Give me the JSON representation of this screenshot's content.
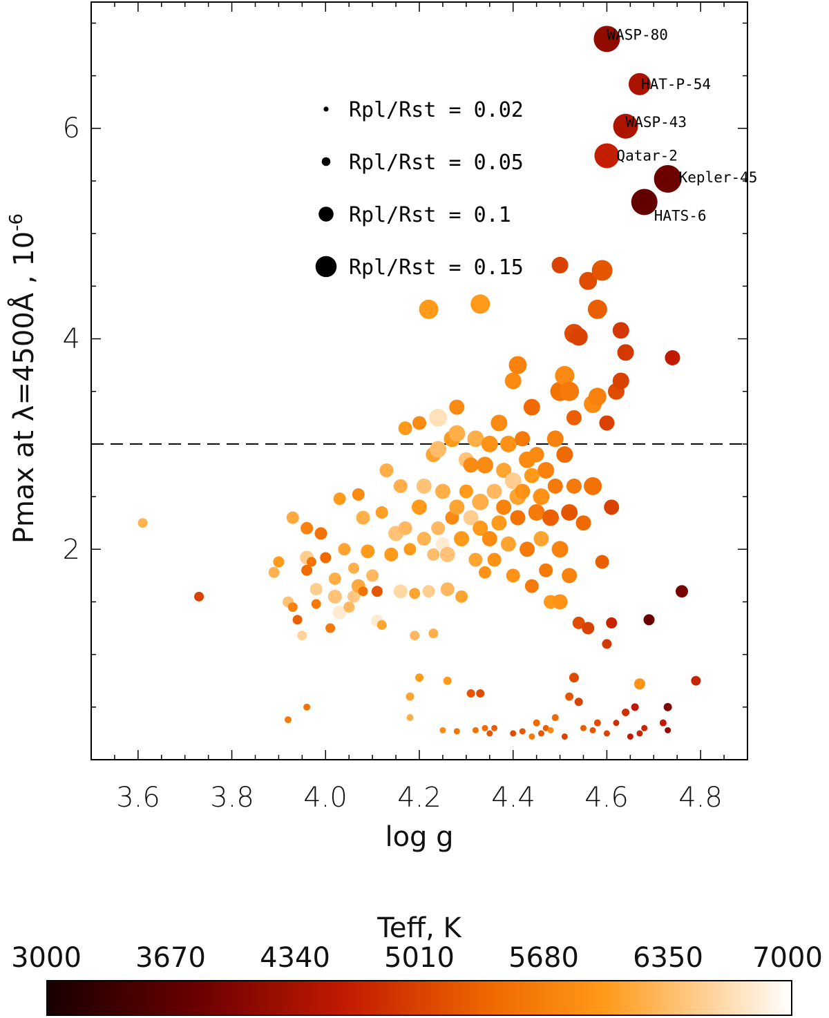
{
  "chart_data": {
    "type": "scatter",
    "xlabel": "log g",
    "ylabel_main": "Pmax at λ=4500Å , 10",
    "ylabel_exp": "-6",
    "xlim": [
      3.5,
      4.9
    ],
    "ylim": [
      0,
      7.2
    ],
    "x_ticks": [
      "3.6",
      "3.8",
      "4.0",
      "4.2",
      "4.4",
      "4.6",
      "4.8"
    ],
    "y_ticks": [
      "2",
      "4",
      "6"
    ],
    "threshold_line": 3.0,
    "size_legend": [
      {
        "label": "Rpl/Rst = 0.02",
        "ratio": 0.02
      },
      {
        "label": "Rpl/Rst = 0.05",
        "ratio": 0.05
      },
      {
        "label": "Rpl/Rst = 0.1",
        "ratio": 0.1
      },
      {
        "label": "Rpl/Rst = 0.15",
        "ratio": 0.15
      }
    ],
    "labeled_points": [
      {
        "name": "WASP-80",
        "logg": 4.6,
        "pmax": 6.85,
        "teff": 4150,
        "ratio": 0.17
      },
      {
        "name": "HAT-P-54",
        "logg": 4.67,
        "pmax": 6.42,
        "teff": 4390,
        "ratio": 0.14
      },
      {
        "name": "WASP-43",
        "logg": 4.64,
        "pmax": 6.02,
        "teff": 4400,
        "ratio": 0.16
      },
      {
        "name": "Qatar-2",
        "logg": 4.6,
        "pmax": 5.74,
        "teff": 4640,
        "ratio": 0.16
      },
      {
        "name": "Kepler-45",
        "logg": 4.73,
        "pmax": 5.52,
        "teff": 3820,
        "ratio": 0.18
      },
      {
        "name": "HATS-6",
        "logg": 4.68,
        "pmax": 5.3,
        "teff": 3720,
        "ratio": 0.17
      }
    ],
    "points": [
      [
        3.61,
        2.25,
        6250,
        0.05
      ],
      [
        3.73,
        1.55,
        5000,
        0.05
      ],
      [
        3.89,
        1.78,
        6250,
        0.06
      ],
      [
        3.9,
        1.88,
        6000,
        0.06
      ],
      [
        3.92,
        1.5,
        6400,
        0.06
      ],
      [
        3.93,
        2.3,
        6150,
        0.07
      ],
      [
        3.93,
        1.45,
        5700,
        0.05
      ],
      [
        3.94,
        1.33,
        5300,
        0.05
      ],
      [
        3.95,
        1.18,
        6550,
        0.05
      ],
      [
        3.96,
        2.2,
        5700,
        0.07
      ],
      [
        3.96,
        1.92,
        6500,
        0.08
      ],
      [
        3.96,
        1.8,
        5400,
        0.06
      ],
      [
        3.97,
        1.88,
        5500,
        0.05
      ],
      [
        3.98,
        1.62,
        6500,
        0.07
      ],
      [
        3.98,
        1.48,
        5600,
        0.05
      ],
      [
        3.99,
        2.15,
        5500,
        0.07
      ],
      [
        4.0,
        1.92,
        5400,
        0.06
      ],
      [
        4.01,
        1.25,
        5600,
        0.05
      ],
      [
        4.02,
        1.72,
        6200,
        0.07
      ],
      [
        4.02,
        1.55,
        6400,
        0.08
      ],
      [
        4.03,
        1.4,
        6800,
        0.08
      ],
      [
        4.03,
        2.48,
        6000,
        0.07
      ],
      [
        4.04,
        2.0,
        6100,
        0.07
      ],
      [
        4.05,
        1.45,
        6300,
        0.06
      ],
      [
        4.06,
        1.55,
        6450,
        0.07
      ],
      [
        4.06,
        1.82,
        6200,
        0.06
      ],
      [
        4.07,
        1.65,
        6150,
        0.08
      ],
      [
        4.07,
        2.52,
        5800,
        0.07
      ],
      [
        4.08,
        2.3,
        6200,
        0.08
      ],
      [
        4.08,
        1.6,
        5500,
        0.05
      ],
      [
        4.09,
        1.98,
        6000,
        0.08
      ],
      [
        4.1,
        1.75,
        6300,
        0.07
      ],
      [
        4.11,
        1.6,
        5200,
        0.06
      ],
      [
        4.11,
        1.32,
        6800,
        0.07
      ],
      [
        4.12,
        1.28,
        6100,
        0.05
      ],
      [
        4.12,
        2.35,
        6050,
        0.07
      ],
      [
        4.13,
        2.75,
        6200,
        0.08
      ],
      [
        4.14,
        1.95,
        6000,
        0.08
      ],
      [
        4.15,
        2.15,
        6400,
        0.09
      ],
      [
        4.16,
        2.6,
        6200,
        0.08
      ],
      [
        4.16,
        1.6,
        6600,
        0.08
      ],
      [
        4.17,
        2.2,
        6300,
        0.08
      ],
      [
        4.17,
        3.15,
        6000,
        0.08
      ],
      [
        4.18,
        2.0,
        6000,
        0.07
      ],
      [
        4.19,
        1.58,
        6100,
        0.06
      ],
      [
        4.19,
        1.18,
        6300,
        0.05
      ],
      [
        4.2,
        2.4,
        6000,
        0.09
      ],
      [
        4.2,
        3.2,
        5800,
        0.08
      ],
      [
        4.21,
        2.6,
        6400,
        0.09
      ],
      [
        4.21,
        2.1,
        6250,
        0.08
      ],
      [
        4.22,
        4.28,
        6000,
        0.12
      ],
      [
        4.22,
        1.6,
        6500,
        0.07
      ],
      [
        4.23,
        2.9,
        6100,
        0.09
      ],
      [
        4.23,
        1.95,
        6350,
        0.07
      ],
      [
        4.23,
        1.2,
        6200,
        0.05
      ],
      [
        4.24,
        2.2,
        6300,
        0.08
      ],
      [
        4.24,
        3.25,
        6700,
        0.11
      ],
      [
        4.24,
        2.95,
        6350,
        0.1
      ],
      [
        4.25,
        2.55,
        6200,
        0.09
      ],
      [
        4.25,
        2.05,
        6800,
        0.08
      ],
      [
        4.26,
        1.95,
        6400,
        0.09
      ],
      [
        4.26,
        1.62,
        6300,
        0.08
      ],
      [
        4.27,
        3.05,
        6000,
        0.1
      ],
      [
        4.27,
        2.3,
        5800,
        0.08
      ],
      [
        4.28,
        3.35,
        5800,
        0.09
      ],
      [
        4.28,
        3.1,
        6200,
        0.1
      ],
      [
        4.28,
        2.4,
        6100,
        0.09
      ],
      [
        4.29,
        2.1,
        6000,
        0.09
      ],
      [
        4.29,
        1.55,
        6100,
        0.07
      ],
      [
        4.3,
        2.85,
        6400,
        0.09
      ],
      [
        4.3,
        2.55,
        6000,
        0.08
      ],
      [
        4.31,
        2.8,
        5800,
        0.09
      ],
      [
        4.31,
        2.3,
        6500,
        0.09
      ],
      [
        4.32,
        3.05,
        6200,
        0.1
      ],
      [
        4.32,
        1.9,
        6100,
        0.08
      ],
      [
        4.33,
        4.33,
        6000,
        0.12
      ],
      [
        4.33,
        2.45,
        6200,
        0.1
      ],
      [
        4.33,
        2.2,
        6000,
        0.09
      ],
      [
        4.34,
        2.8,
        5800,
        0.1
      ],
      [
        4.34,
        1.78,
        5900,
        0.07
      ],
      [
        4.35,
        3.0,
        5900,
        0.1
      ],
      [
        4.35,
        2.1,
        5800,
        0.09
      ],
      [
        4.36,
        2.55,
        6300,
        0.09
      ],
      [
        4.36,
        1.9,
        5900,
        0.08
      ],
      [
        4.37,
        2.25,
        6000,
        0.09
      ],
      [
        4.37,
        3.2,
        5800,
        0.1
      ],
      [
        4.38,
        2.75,
        6100,
        0.09
      ],
      [
        4.38,
        2.4,
        5700,
        0.09
      ],
      [
        4.39,
        3.0,
        5900,
        0.1
      ],
      [
        4.39,
        2.05,
        6100,
        0.09
      ],
      [
        4.4,
        2.65,
        6500,
        0.1
      ],
      [
        4.4,
        3.6,
        5800,
        0.1
      ],
      [
        4.4,
        1.75,
        5900,
        0.08
      ],
      [
        4.41,
        2.5,
        6100,
        0.1
      ],
      [
        4.41,
        2.3,
        5500,
        0.09
      ],
      [
        4.41,
        3.75,
        5700,
        0.11
      ],
      [
        4.42,
        3.05,
        5600,
        0.09
      ],
      [
        4.42,
        2.55,
        5900,
        0.09
      ],
      [
        4.43,
        2.85,
        5800,
        0.1
      ],
      [
        4.43,
        2.0,
        5600,
        0.09
      ],
      [
        4.44,
        3.35,
        5400,
        0.1
      ],
      [
        4.44,
        2.7,
        6000,
        0.09
      ],
      [
        4.44,
        1.65,
        5600,
        0.08
      ],
      [
        4.45,
        2.35,
        5600,
        0.1
      ],
      [
        4.45,
        2.9,
        5800,
        0.09
      ],
      [
        4.46,
        2.1,
        6100,
        0.09
      ],
      [
        4.46,
        2.5,
        5900,
        0.1
      ],
      [
        4.47,
        2.75,
        5700,
        0.1
      ],
      [
        4.47,
        1.8,
        5600,
        0.08
      ],
      [
        4.48,
        2.3,
        5300,
        0.1
      ],
      [
        4.48,
        1.5,
        6000,
        0.08
      ],
      [
        4.49,
        3.05,
        5700,
        0.1
      ],
      [
        4.49,
        2.6,
        5600,
        0.09
      ],
      [
        4.5,
        4.7,
        5000,
        0.1
      ],
      [
        4.5,
        3.5,
        5500,
        0.12
      ],
      [
        4.5,
        2.0,
        5700,
        0.1
      ],
      [
        4.5,
        1.5,
        5900,
        0.09
      ],
      [
        4.51,
        3.65,
        5800,
        0.12
      ],
      [
        4.51,
        2.9,
        5400,
        0.1
      ],
      [
        4.52,
        3.5,
        5600,
        0.12
      ],
      [
        4.52,
        2.35,
        5200,
        0.1
      ],
      [
        4.52,
        1.75,
        5700,
        0.09
      ],
      [
        4.53,
        4.05,
        5100,
        0.12
      ],
      [
        4.53,
        3.25,
        5300,
        0.09
      ],
      [
        4.53,
        2.6,
        5600,
        0.09
      ],
      [
        4.54,
        4.02,
        5000,
        0.11
      ],
      [
        4.54,
        1.3,
        5100,
        0.07
      ],
      [
        4.55,
        2.25,
        5400,
        0.09
      ],
      [
        4.56,
        4.55,
        5100,
        0.11
      ],
      [
        4.56,
        1.25,
        5000,
        0.07
      ],
      [
        4.57,
        3.38,
        5800,
        0.11
      ],
      [
        4.57,
        2.6,
        5500,
        0.11
      ],
      [
        4.58,
        4.28,
        5300,
        0.12
      ],
      [
        4.58,
        3.45,
        5700,
        0.11
      ],
      [
        4.59,
        4.65,
        5200,
        0.13
      ],
      [
        4.59,
        1.88,
        5300,
        0.08
      ],
      [
        4.6,
        3.2,
        5000,
        0.09
      ],
      [
        4.6,
        1.1,
        4900,
        0.05
      ],
      [
        4.61,
        2.4,
        5000,
        0.09
      ],
      [
        4.61,
        1.3,
        4700,
        0.06
      ],
      [
        4.62,
        3.5,
        5100,
        0.1
      ],
      [
        4.63,
        4.08,
        4900,
        0.1
      ],
      [
        4.63,
        3.6,
        5000,
        0.1
      ],
      [
        4.64,
        3.87,
        4900,
        0.1
      ],
      [
        4.67,
        0.72,
        5900,
        0.06
      ],
      [
        4.69,
        1.33,
        3800,
        0.06
      ],
      [
        4.74,
        3.82,
        4600,
        0.09
      ],
      [
        4.76,
        1.6,
        3900,
        0.07
      ],
      [
        4.79,
        0.75,
        4700,
        0.05
      ],
      [
        3.92,
        0.38,
        5600,
        0.03
      ],
      [
        3.96,
        0.5,
        5500,
        0.03
      ],
      [
        4.18,
        0.6,
        6100,
        0.04
      ],
      [
        4.18,
        0.4,
        6200,
        0.03
      ],
      [
        4.2,
        0.78,
        6000,
        0.04
      ],
      [
        4.25,
        0.28,
        5800,
        0.025
      ],
      [
        4.26,
        0.75,
        6000,
        0.04
      ],
      [
        4.28,
        0.27,
        5500,
        0.025
      ],
      [
        4.31,
        0.63,
        5200,
        0.04
      ],
      [
        4.32,
        0.28,
        5500,
        0.025
      ],
      [
        4.33,
        0.63,
        5100,
        0.04
      ],
      [
        4.34,
        0.3,
        5400,
        0.025
      ],
      [
        4.35,
        0.25,
        5200,
        0.025
      ],
      [
        4.36,
        0.3,
        5300,
        0.025
      ],
      [
        4.4,
        0.25,
        5100,
        0.025
      ],
      [
        4.42,
        0.27,
        5200,
        0.025
      ],
      [
        4.44,
        0.22,
        5600,
        0.025
      ],
      [
        4.45,
        0.35,
        5400,
        0.03
      ],
      [
        4.46,
        0.25,
        5200,
        0.025
      ],
      [
        4.47,
        0.3,
        5300,
        0.025
      ],
      [
        4.48,
        0.28,
        5800,
        0.025
      ],
      [
        4.49,
        0.4,
        5400,
        0.03
      ],
      [
        4.51,
        0.22,
        5000,
        0.025
      ],
      [
        4.52,
        0.6,
        5200,
        0.04
      ],
      [
        4.53,
        0.78,
        5100,
        0.05
      ],
      [
        4.54,
        0.55,
        5000,
        0.04
      ],
      [
        4.55,
        0.3,
        5300,
        0.025
      ],
      [
        4.57,
        0.28,
        5200,
        0.025
      ],
      [
        4.58,
        0.35,
        5100,
        0.03
      ],
      [
        4.6,
        0.25,
        5000,
        0.025
      ],
      [
        4.62,
        0.35,
        4800,
        0.025
      ],
      [
        4.64,
        0.45,
        4800,
        0.035
      ],
      [
        4.65,
        0.22,
        4600,
        0.025
      ],
      [
        4.66,
        0.5,
        4600,
        0.035
      ],
      [
        4.67,
        0.25,
        4700,
        0.025
      ],
      [
        4.68,
        0.3,
        4700,
        0.025
      ],
      [
        4.72,
        0.35,
        4600,
        0.03
      ],
      [
        4.73,
        0.5,
        4000,
        0.04
      ],
      [
        4.73,
        0.28,
        4200,
        0.025
      ]
    ]
  },
  "colorbar": {
    "title": "Teff, K",
    "ticks": [
      "3000",
      "3670",
      "4340",
      "5010",
      "5680",
      "6350",
      "7000"
    ],
    "min": 3000,
    "max": 7000
  }
}
